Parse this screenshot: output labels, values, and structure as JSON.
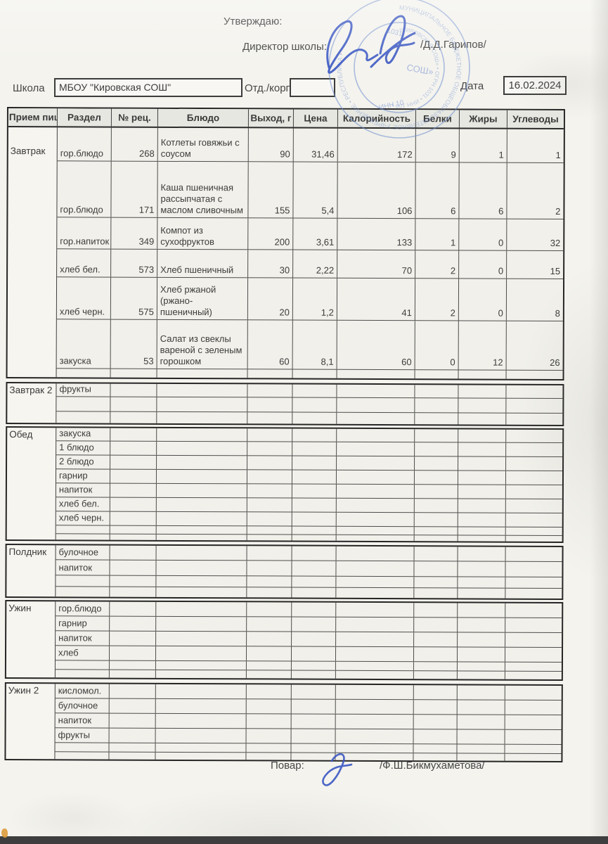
{
  "header": {
    "approve_label": "Утверждаю:",
    "director_label": "Директор школы:",
    "director_name": "/Д.Д.Гарипов/",
    "school_label": "Школа",
    "school_value": "МБОУ \"Кировская СОШ\"",
    "dept_label": "Отд./корп",
    "dept_value": "",
    "date_label": "Дата",
    "date_value": "16.02.2024",
    "stamp": {
      "center_text": "СОШ»",
      "top_text": "1031",
      "bottom_text": "ИНН 10"
    }
  },
  "table": {
    "columns": [
      "Прием пищи",
      "Раздел",
      "№ рец.",
      "Блюдо",
      "Выход, г",
      "Цена",
      "Калорийность",
      "Белки",
      "Жиры",
      "Углеводы"
    ],
    "sections": [
      {
        "meal": "Завтрак",
        "rows": [
          [
            "гор.блюдо",
            "268",
            "Котлеты говяжьи с\nсоусом",
            "90",
            "31,46",
            "172",
            "9",
            "1",
            "1"
          ],
          [
            "гор.блюдо",
            "171",
            "Каша пшеничная\nрассыпчатая с\nмаслом сливочным",
            "155",
            "5,4",
            "106",
            "6",
            "6",
            "2"
          ],
          [
            "гор.напиток",
            "349",
            "Компот из\nсухофруктов",
            "200",
            "3,61",
            "133",
            "1",
            "0",
            "32"
          ],
          [
            "хлеб бел.",
            "573",
            "Хлеб пшеничный",
            "30",
            "2,22",
            "70",
            "2",
            "0",
            "15"
          ],
          [
            "хлеб черн.",
            "575",
            "Хлеб ржаной\n(ржано-\nпшеничный)",
            "20",
            "1,2",
            "41",
            "2",
            "0",
            "8"
          ],
          [
            "закуска",
            "53",
            "Салат из свеклы\nвареной с зеленым\nгорошком",
            "60",
            "8,1",
            "60",
            "0",
            "12",
            "26"
          ],
          []
        ]
      },
      {
        "meal": "Завтрак 2",
        "rows": [
          [
            "фрукты"
          ],
          [],
          []
        ]
      },
      {
        "meal": "Обед",
        "rows": [
          [
            "закуска"
          ],
          [
            "1 блюдо"
          ],
          [
            "2 блюдо"
          ],
          [
            "гарнир"
          ],
          [
            "напиток"
          ],
          [
            "хлеб бел."
          ],
          [
            "хлеб черн."
          ],
          [],
          []
        ]
      },
      {
        "meal": "Полдник",
        "rows": [
          [
            "булочное"
          ],
          [
            "напиток"
          ],
          [],
          []
        ]
      },
      {
        "meal": "Ужин",
        "rows": [
          [
            "гор.блюдо"
          ],
          [
            "гарнир"
          ],
          [
            "напиток"
          ],
          [
            "хлеб"
          ],
          [],
          []
        ]
      },
      {
        "meal": "Ужин 2",
        "rows": [
          [
            "кисломол."
          ],
          [
            "булочное"
          ],
          [
            "напиток"
          ],
          [
            "фрукты"
          ],
          [],
          []
        ]
      }
    ]
  },
  "footer": {
    "cook_label": "Повар:",
    "cook_name": "/Ф.Ш.Бикмухаметова/"
  }
}
